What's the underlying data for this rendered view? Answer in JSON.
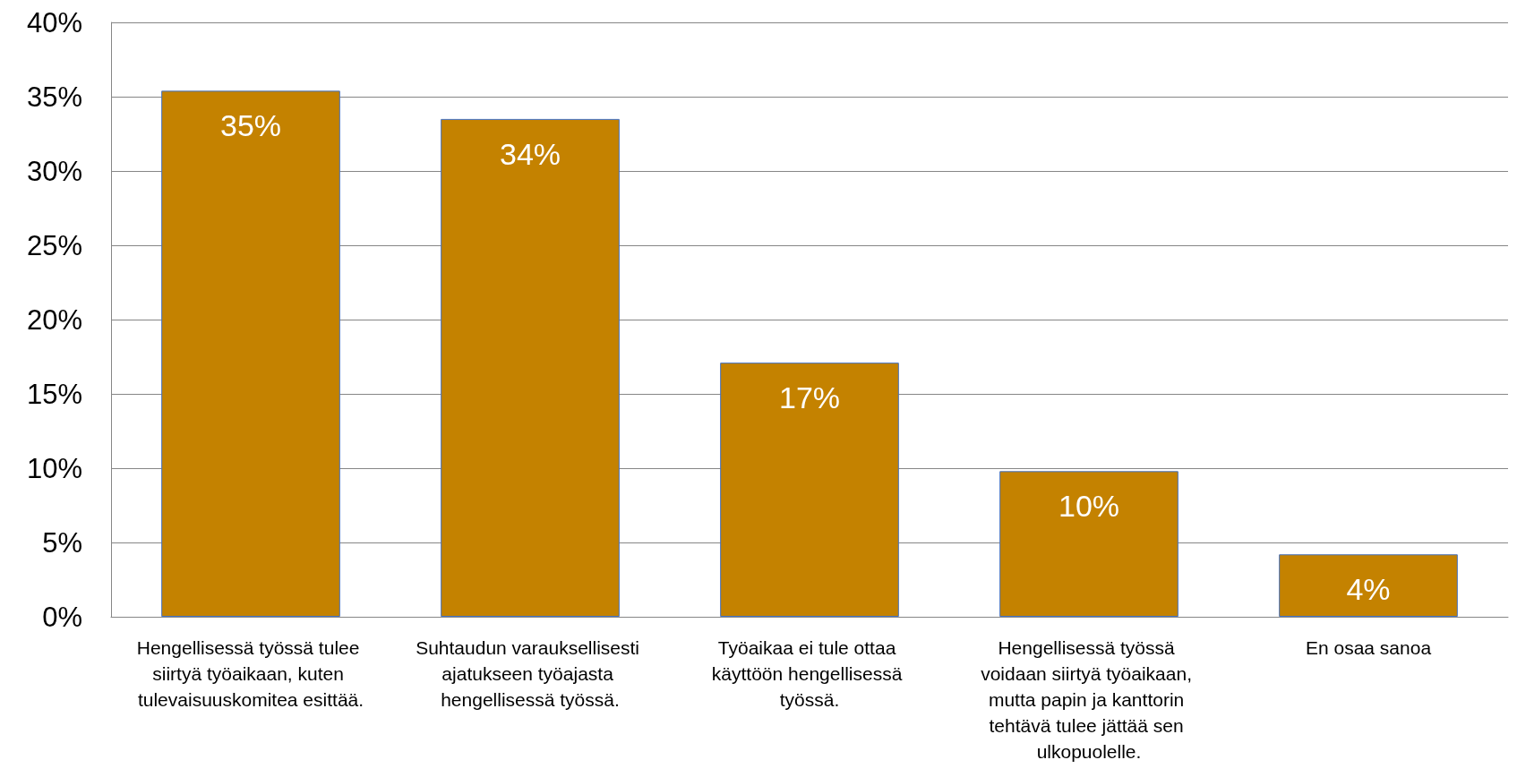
{
  "chart_data": {
    "type": "bar",
    "categories": [
      "Hengellisessä työssä tulee siirtyä työaikaan, kuten tulevaisuuskomitea esittää.",
      "Suhtaudun varauksellisesti ajatukseen työajasta hengellisessä työssä.",
      "Työaikaa ei tule ottaa käyttöön hengellisessä työssä.",
      "Hengellisessä työssä voidaan siirtyä työaikaan, mutta papin ja kanttorin tehtävä tulee jättää sen ulkopuolelle.",
      "En osaa sanoa"
    ],
    "values": [
      35.4,
      33.5,
      17.1,
      9.8,
      4.2
    ],
    "value_labels": [
      "35%",
      "34%",
      "17%",
      "10%",
      "4%"
    ],
    "color": "#c48200",
    "ylim": [
      0,
      40
    ],
    "yticks": [
      {
        "value": 0,
        "label": "0%"
      },
      {
        "value": 5,
        "label": "5%"
      },
      {
        "value": 10,
        "label": "10%"
      },
      {
        "value": 15,
        "label": "15%"
      },
      {
        "value": 20,
        "label": "20%"
      },
      {
        "value": 25,
        "label": "25%"
      },
      {
        "value": 30,
        "label": "30%"
      },
      {
        "value": 35,
        "label": "35%"
      },
      {
        "value": 40,
        "label": "40%"
      }
    ],
    "grid": "y"
  }
}
